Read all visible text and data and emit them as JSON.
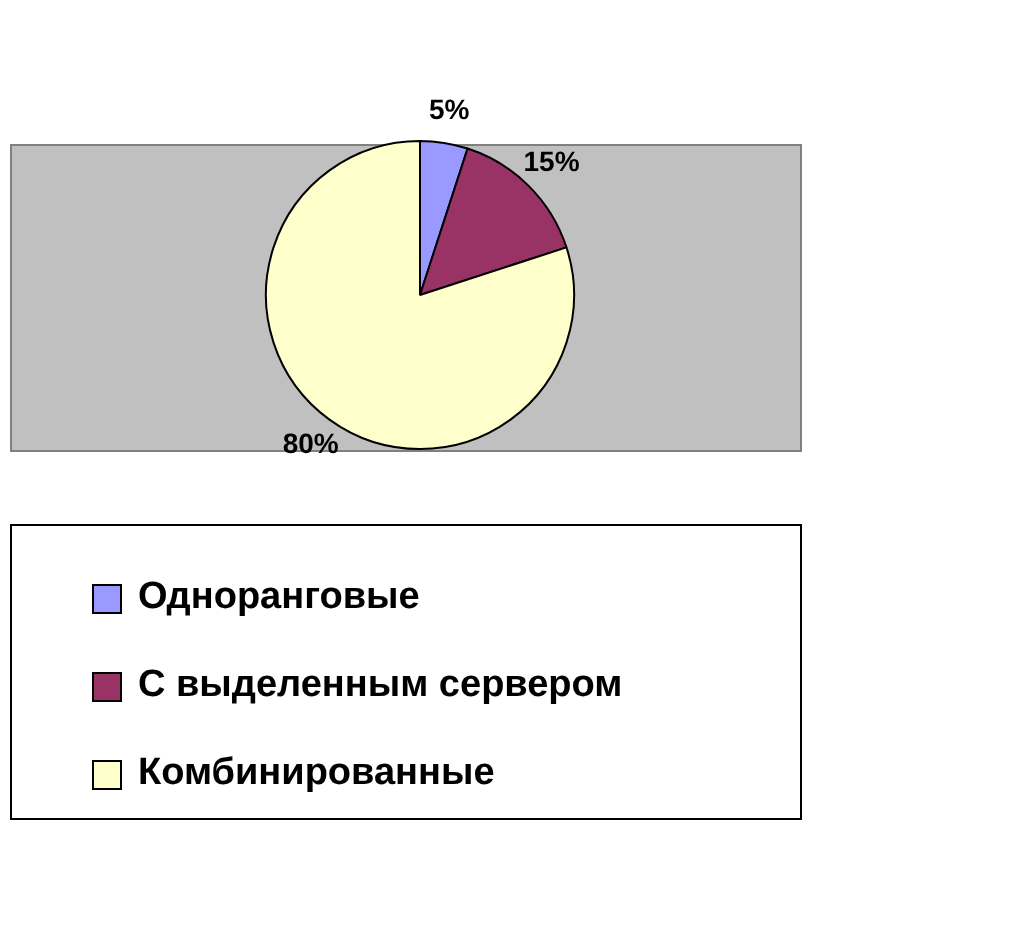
{
  "chart_data": {
    "type": "pie",
    "categories": [
      "Одноранговые",
      "С выделенным сервером",
      "Комбинированные"
    ],
    "values": [
      5,
      15,
      80
    ],
    "colors": [
      "#9999ff",
      "#993366",
      "#ffffcc"
    ],
    "value_labels": [
      "5%",
      "15%",
      "80%"
    ],
    "legend": "bottom"
  }
}
